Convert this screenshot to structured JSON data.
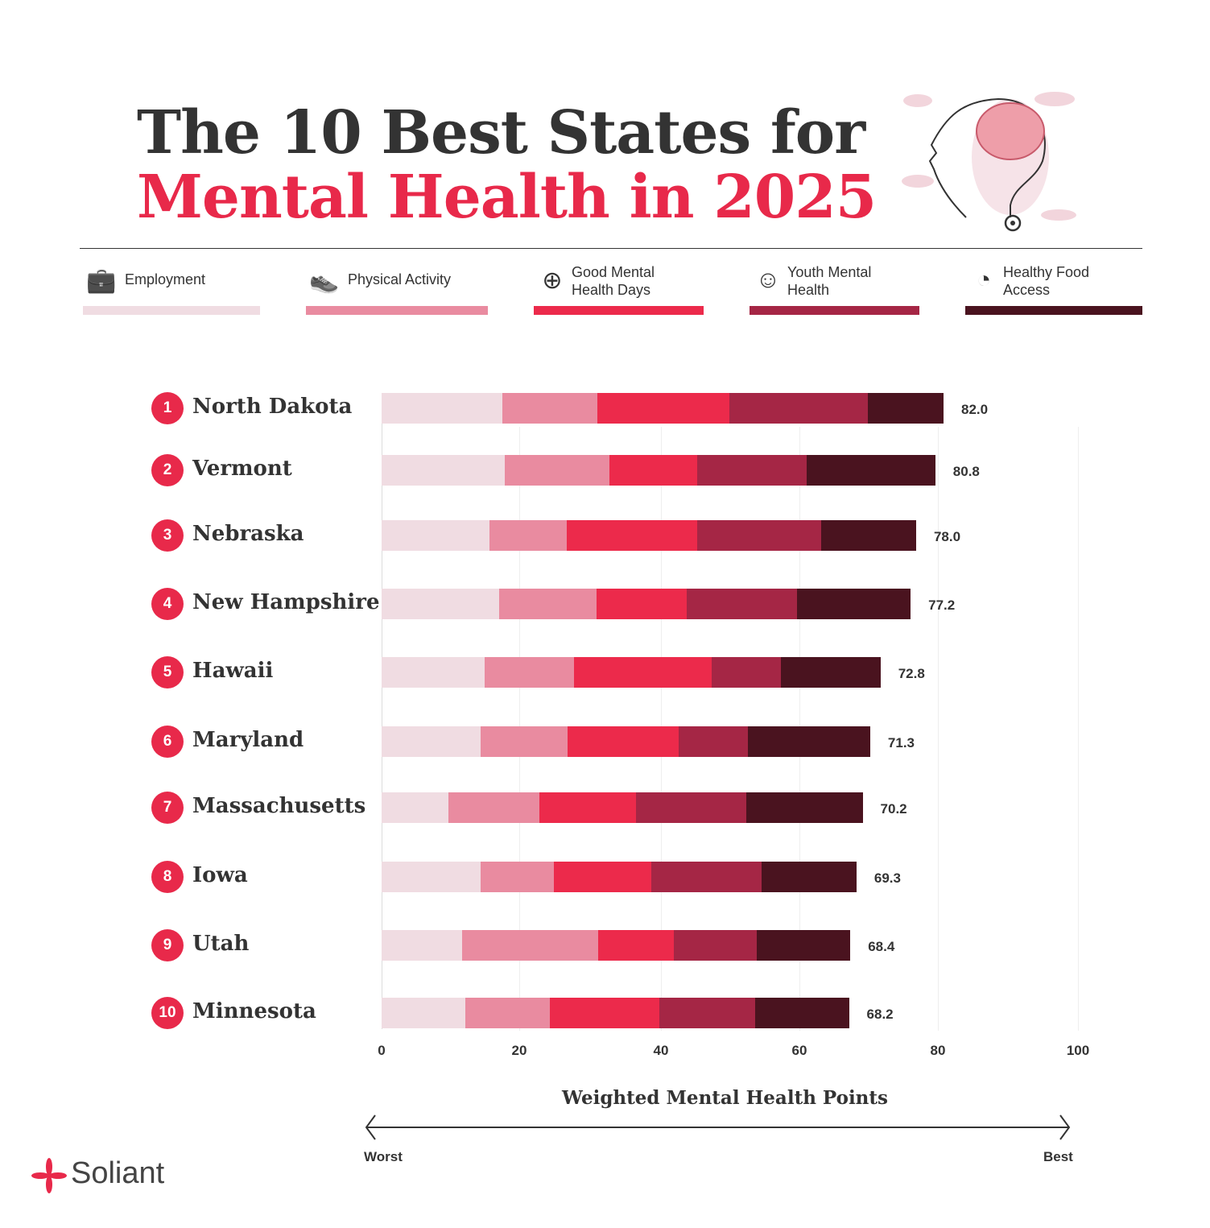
{
  "header": {
    "title_line1": "The 10 Best States for",
    "title_line2": "Mental Health in 2025"
  },
  "brand": {
    "name": "Soliant"
  },
  "colors": {
    "accent": "#E8294A",
    "text": "#333333"
  },
  "chart_data": {
    "type": "bar",
    "orientation": "horizontal",
    "stacked": true,
    "xlabel": "Weighted Mental Health Points",
    "xlim": [
      0,
      100
    ],
    "xticks": [
      "0",
      "20",
      "40",
      "60",
      "80",
      "100"
    ],
    "scale_labels": {
      "low": "Worst",
      "high": "Best"
    },
    "legend": [
      {
        "name": "Employment",
        "color": "#F0DCE2",
        "icon": "briefcase-icon"
      },
      {
        "name": "Physical Activity",
        "color": "#E98BA0",
        "icon": "sneaker-icon"
      },
      {
        "name": "Good Mental Health Days",
        "color": "#EC2A4B",
        "icon": "head-cross-icon"
      },
      {
        "name": "Youth Mental Health",
        "color": "#A52645",
        "icon": "youth-icon"
      },
      {
        "name": "Healthy Food Access",
        "color": "#4A131F",
        "icon": "fruit-icon"
      }
    ],
    "categories": [
      {
        "rank": "1",
        "state": "North Dakota",
        "total": "82.0",
        "values": [
          17.6,
          13.9,
          19.2,
          20.3,
          11.0
        ]
      },
      {
        "rank": "2",
        "state": "Vermont",
        "total": "80.8",
        "values": [
          18.0,
          15.2,
          12.8,
          16.0,
          18.8
        ]
      },
      {
        "rank": "3",
        "state": "Nebraska",
        "total": "78.0",
        "values": [
          15.8,
          11.2,
          19.1,
          18.0,
          13.9
        ]
      },
      {
        "rank": "4",
        "state": "New Hampshire",
        "total": "77.2",
        "values": [
          17.1,
          14.3,
          13.1,
          16.1,
          16.6
        ]
      },
      {
        "rank": "5",
        "state": "Hawaii",
        "total": "72.8",
        "values": [
          15.0,
          13.1,
          20.1,
          10.1,
          14.5
        ]
      },
      {
        "rank": "6",
        "state": "Maryland",
        "total": "71.3",
        "values": [
          14.5,
          12.6,
          16.2,
          10.1,
          17.9
        ]
      },
      {
        "rank": "7",
        "state": "Massachusetts",
        "total": "70.2",
        "values": [
          9.7,
          13.3,
          14.1,
          16.1,
          17.0
        ]
      },
      {
        "rank": "8",
        "state": "Iowa",
        "total": "69.3",
        "values": [
          14.4,
          10.7,
          14.2,
          16.1,
          13.9
        ]
      },
      {
        "rank": "9",
        "state": "Utah",
        "total": "68.4",
        "values": [
          11.8,
          19.8,
          11.1,
          12.0,
          13.7
        ]
      },
      {
        "rank": "10",
        "state": "Minnesota",
        "total": "68.2",
        "values": [
          12.2,
          12.4,
          15.9,
          14.0,
          13.7
        ]
      }
    ]
  }
}
